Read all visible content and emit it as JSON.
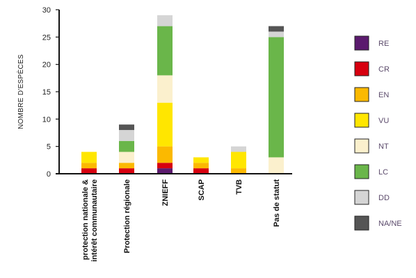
{
  "chart_data": {
    "type": "bar",
    "stacked": true,
    "ylabel": "NOMBRE D'ESPÈCES",
    "xlabel": "",
    "ylim": [
      0,
      30
    ],
    "yticks": [
      0,
      5,
      10,
      15,
      20,
      25,
      30
    ],
    "grid": false,
    "legend_position": "right",
    "categories": [
      "protection nationale & intérêt communautaire",
      "Protection régionale",
      "ZNIEFF",
      "SCAP",
      "TVB",
      "Pas de statut"
    ],
    "series": [
      {
        "name": "RE",
        "color": "#5b1a6e",
        "values": [
          0,
          0,
          1,
          0,
          0,
          0
        ]
      },
      {
        "name": "CR",
        "color": "#d7000f",
        "values": [
          1,
          1,
          1,
          1,
          0,
          0
        ]
      },
      {
        "name": "EN",
        "color": "#fbb900",
        "values": [
          1,
          1,
          3,
          1,
          1,
          0
        ]
      },
      {
        "name": "VU",
        "color": "#ffe600",
        "values": [
          2,
          0,
          8,
          1,
          3,
          0
        ]
      },
      {
        "name": "NT",
        "color": "#fbf0cd",
        "values": [
          0,
          2,
          5,
          0,
          0,
          3
        ]
      },
      {
        "name": "LC",
        "color": "#6ab64a",
        "values": [
          0,
          2,
          9,
          0,
          0,
          22
        ]
      },
      {
        "name": "DD",
        "color": "#d5d5d5",
        "values": [
          0,
          2,
          2,
          0,
          1,
          1
        ]
      },
      {
        "name": "NA/NE",
        "color": "#555555",
        "values": [
          0,
          1,
          0,
          0,
          0,
          1
        ]
      }
    ]
  }
}
